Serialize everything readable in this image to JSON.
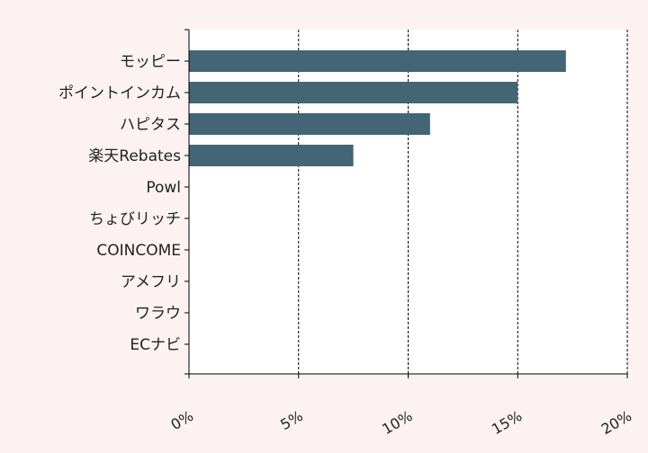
{
  "chart_data": {
    "type": "bar",
    "orientation": "horizontal",
    "categories": [
      "モッピー",
      "ポイントインカム",
      "ハピタス",
      "楽天Rebates",
      "Powl",
      "ちょびリッチ",
      "COINCOME",
      "アメフリ",
      "ワラウ",
      "ECナビ"
    ],
    "values": [
      17.2,
      15.0,
      11.0,
      7.5,
      0,
      0,
      0,
      0,
      0,
      0
    ],
    "xlim": [
      0,
      20
    ],
    "xticks": [
      0,
      5,
      10,
      15,
      20
    ],
    "xtick_labels": [
      "0%",
      "5%",
      "10%",
      "15%",
      "20%"
    ],
    "title": "",
    "xlabel": "",
    "ylabel": "",
    "grid": "vertical dashed lines",
    "legend": "none",
    "colors": {
      "bar": "#436576",
      "plot_background": "#ffffff",
      "page_background": "#fdf2f2",
      "grid": "#000000"
    }
  }
}
